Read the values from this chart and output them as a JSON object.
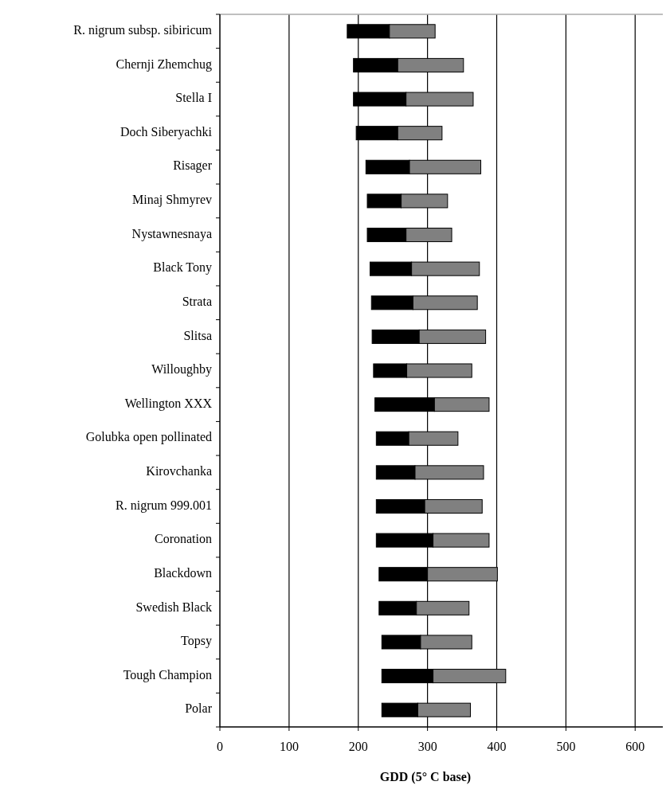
{
  "chart_data": {
    "type": "bar",
    "orientation": "horizontal",
    "xlabel": "GDD (5° C base)",
    "categories": [
      "R. nigrum subsp. sibiricum",
      "Chernji Zhemchug",
      "Stella I",
      "Doch Siberyachki",
      "Risager",
      "Minaj Shmyrev",
      "Nystawnesnaya",
      "Black Tony",
      "Strata",
      "Slitsa",
      "Willoughby",
      "Wellington XXX",
      "Golubka open pollinated",
      "Kirovchanka",
      "R. nigrum 999.001",
      "Coronation",
      "Blackdown",
      "Swedish Black",
      "Topsy",
      "Tough Champion",
      "Polar"
    ],
    "series": [
      {
        "color": "#000000",
        "base": [
          184,
          193,
          193,
          197,
          211,
          213,
          213,
          217,
          219,
          220,
          222,
          224,
          226,
          226,
          226,
          226,
          230,
          230,
          234,
          234,
          234
        ],
        "values": [
          61,
          64,
          76,
          60,
          63,
          49,
          56,
          60,
          60,
          68,
          48,
          86,
          47,
          56,
          70,
          82,
          70,
          54,
          56,
          74,
          52
        ]
      },
      {
        "color": "#808080",
        "base": [
          245,
          257,
          269,
          257,
          274,
          262,
          269,
          277,
          279,
          288,
          270,
          310,
          273,
          282,
          296,
          308,
          300,
          284,
          290,
          308,
          286
        ],
        "values": [
          66,
          95,
          97,
          64,
          103,
          67,
          66,
          98,
          93,
          96,
          94,
          79,
          71,
          99,
          83,
          81,
          101,
          76,
          74,
          105,
          76
        ]
      }
    ],
    "xlim": [
      0,
      640
    ],
    "xticks": [
      0,
      100,
      200,
      300,
      400,
      500,
      600
    ],
    "grid": "x"
  }
}
